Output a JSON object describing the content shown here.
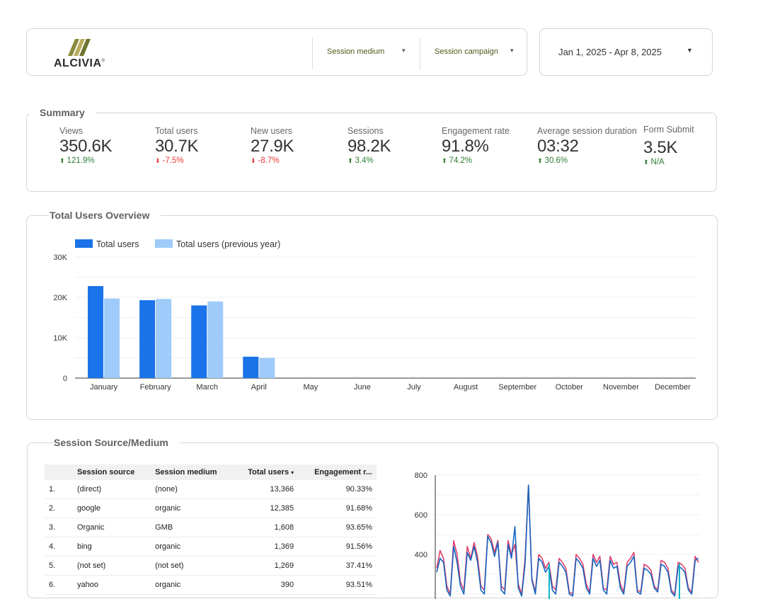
{
  "header": {
    "logo_text": "ALCIVIA",
    "logo_mark": "®",
    "filters": [
      {
        "label": "Session medium"
      },
      {
        "label": "Session campaign"
      }
    ],
    "date_range": "Jan 1, 2025 - Apr 8, 2025"
  },
  "summary": {
    "title": "Summary",
    "metrics": [
      {
        "label": "Views",
        "value": "350.6K",
        "delta": "121.9%",
        "direction": "up"
      },
      {
        "label": "Total users",
        "value": "30.7K",
        "delta": "-7.5%",
        "direction": "down"
      },
      {
        "label": "New users",
        "value": "27.9K",
        "delta": "-8.7%",
        "direction": "down"
      },
      {
        "label": "Sessions",
        "value": "98.2K",
        "delta": "3.4%",
        "direction": "up"
      },
      {
        "label": "Engagement rate",
        "value": "91.8%",
        "delta": "74.2%",
        "direction": "up"
      },
      {
        "label": "Average session duration",
        "value": "03:32",
        "delta": "30.6%",
        "direction": "up"
      },
      {
        "label": "Form Submit",
        "value": "3.5K",
        "delta": "N/A",
        "direction": "up"
      }
    ]
  },
  "overview": {
    "title": "Total Users Overview"
  },
  "source_medium": {
    "title": "Session Source/Medium",
    "columns": [
      "Session source",
      "Session medium",
      "Total users",
      "Engagement r..."
    ],
    "sort_indicator": "▾",
    "rows": [
      {
        "idx": "1.",
        "source": "(direct)",
        "medium": "(none)",
        "users": "13,366",
        "engagement": "90.33%"
      },
      {
        "idx": "2.",
        "source": "google",
        "medium": "organic",
        "users": "12,385",
        "engagement": "91.68%"
      },
      {
        "idx": "3.",
        "source": "Organic",
        "medium": "GMB",
        "users": "1,608",
        "engagement": "93.65%"
      },
      {
        "idx": "4.",
        "source": "bing",
        "medium": "organic",
        "users": "1,369",
        "engagement": "91.56%"
      },
      {
        "idx": "5.",
        "source": "(not set)",
        "medium": "(not set)",
        "users": "1,269",
        "engagement": "37.41%"
      },
      {
        "idx": "6.",
        "source": "yahoo",
        "medium": "organic",
        "users": "390",
        "engagement": "93.51%"
      }
    ]
  },
  "colors": {
    "primary_bar": "#1a73e8",
    "previous_bar": "#9ecbf9",
    "line_blue": "#1565c0",
    "line_pink": "#e0406b",
    "line_teal": "#12b5cb"
  },
  "chart_data": [
    {
      "type": "bar",
      "title": "Total Users Overview",
      "categories": [
        "January",
        "February",
        "March",
        "April",
        "May",
        "June",
        "July",
        "August",
        "September",
        "October",
        "November",
        "December"
      ],
      "series": [
        {
          "name": "Total users",
          "values": [
            22800,
            19300,
            18000,
            5300,
            null,
            null,
            null,
            null,
            null,
            null,
            null,
            null
          ]
        },
        {
          "name": "Total users (previous year)",
          "values": [
            19700,
            19600,
            19000,
            5000,
            null,
            null,
            null,
            null,
            null,
            null,
            null,
            null
          ]
        }
      ],
      "yticks": [
        "0",
        "10K",
        "20K",
        "30K"
      ],
      "ylim": [
        0,
        30000
      ],
      "legend": "top-left",
      "grid": true
    },
    {
      "type": "line",
      "yticks": [
        "400",
        "600",
        "800"
      ],
      "ylim": [
        200,
        800
      ],
      "grid": true,
      "series": [
        {
          "color_key": "line_pink",
          "values": [
            330,
            420,
            380,
            240,
            200,
            470,
            400,
            260,
            220,
            440,
            380,
            460,
            390,
            240,
            220,
            500,
            480,
            410,
            470,
            240,
            220,
            470,
            400,
            450,
            250,
            200,
            380,
            750,
            280,
            210,
            400,
            380,
            330,
            360,
            240,
            220,
            380,
            360,
            330,
            210,
            200,
            400,
            380,
            350,
            250,
            210,
            400,
            360,
            390,
            230,
            220,
            390,
            350,
            360,
            250,
            210,
            360,
            380,
            410,
            220,
            210,
            350,
            340,
            320,
            240,
            220,
            370,
            360,
            330,
            220,
            200,
            360,
            350,
            330,
            230,
            210,
            390,
            360
          ]
        },
        {
          "color_key": "line_blue",
          "values": [
            310,
            380,
            360,
            220,
            190,
            440,
            360,
            240,
            200,
            410,
            370,
            440,
            360,
            220,
            200,
            490,
            460,
            390,
            460,
            220,
            200,
            450,
            380,
            540,
            230,
            190,
            350,
            750,
            270,
            200,
            380,
            360,
            310,
            340,
            220,
            200,
            360,
            340,
            310,
            200,
            190,
            380,
            360,
            330,
            230,
            200,
            380,
            340,
            370,
            220,
            200,
            370,
            330,
            340,
            230,
            200,
            340,
            360,
            390,
            210,
            200,
            330,
            320,
            300,
            230,
            210,
            350,
            340,
            310,
            210,
            190,
            340,
            330,
            310,
            220,
            200,
            370,
            380
          ]
        }
      ]
    }
  ]
}
